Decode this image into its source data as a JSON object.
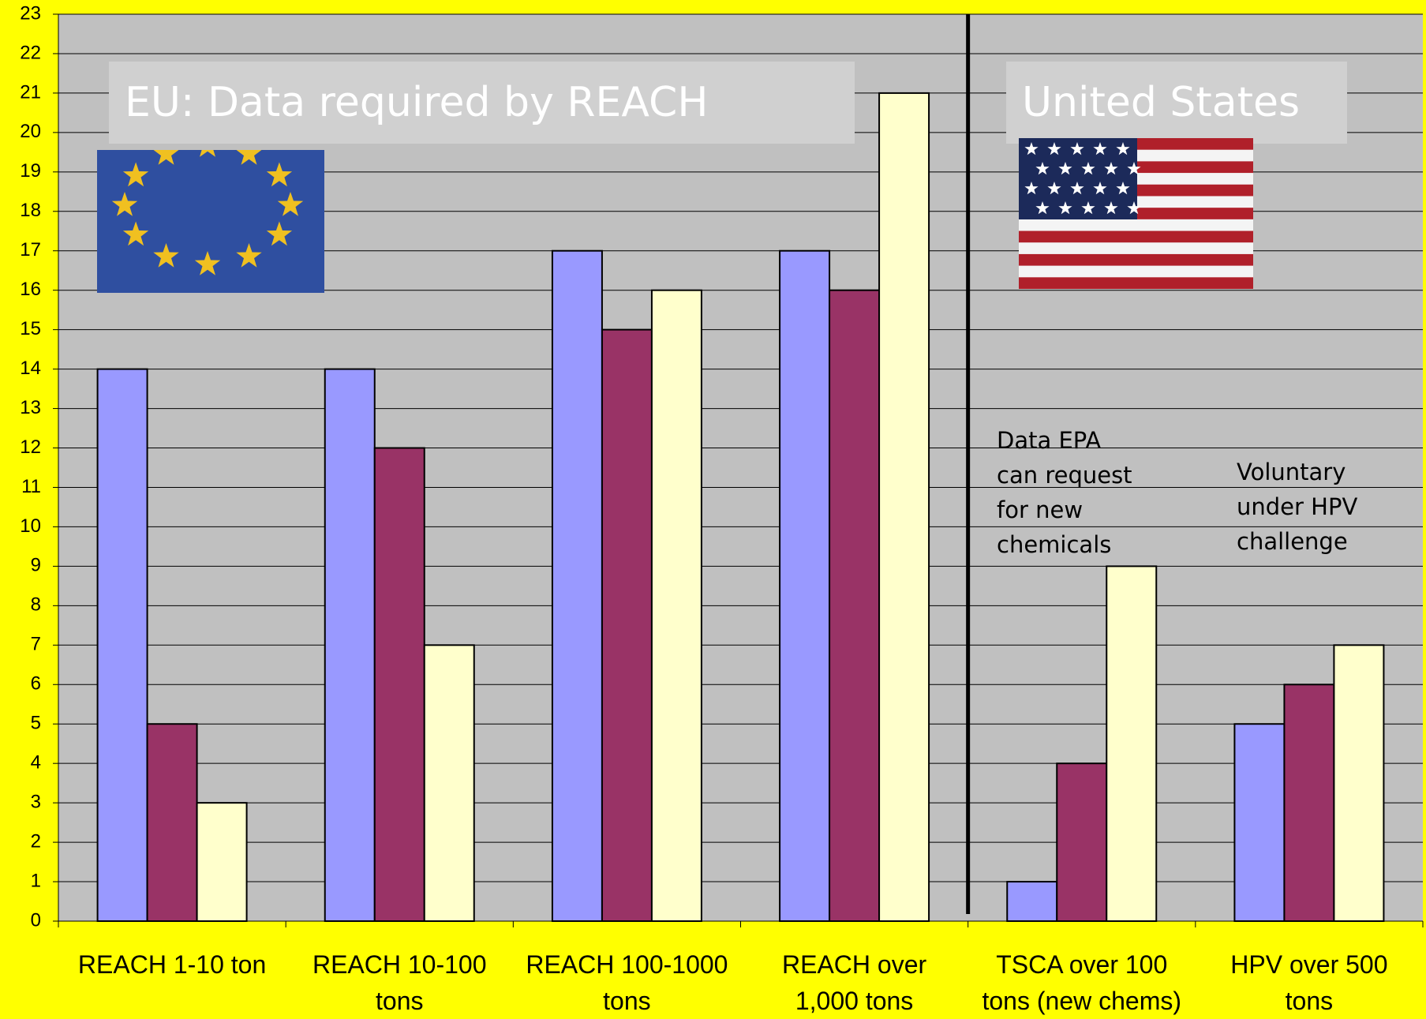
{
  "chart_data": {
    "type": "bar",
    "categories": [
      "REACH 1-10 ton",
      "REACH 10-100\ntons",
      "REACH 100-1000\ntons",
      "REACH over\n1,000 tons",
      "TSCA over 100\ntons (new chems)",
      "HPV over 500\ntons"
    ],
    "series": [
      {
        "color": "#9999ff",
        "values": [
          14,
          14,
          17,
          17,
          1,
          5
        ]
      },
      {
        "color": "#993366",
        "values": [
          5,
          12,
          15,
          16,
          4,
          6
        ]
      },
      {
        "color": "#ffffcc",
        "values": [
          3,
          7,
          16,
          21,
          9,
          7
        ]
      }
    ],
    "ylim": [
      0,
      23
    ],
    "yticks": [
      0,
      1,
      2,
      3,
      4,
      5,
      6,
      7,
      8,
      9,
      10,
      11,
      12,
      13,
      14,
      15,
      16,
      17,
      18,
      19,
      20,
      21,
      22,
      23
    ],
    "grid": true,
    "annotations": [
      "EU: Data required by REACH",
      "United States",
      "Data EPA\ncan request\nfor new\nchemicals",
      "Voluntary\nunder HPV\nchallenge"
    ]
  }
}
